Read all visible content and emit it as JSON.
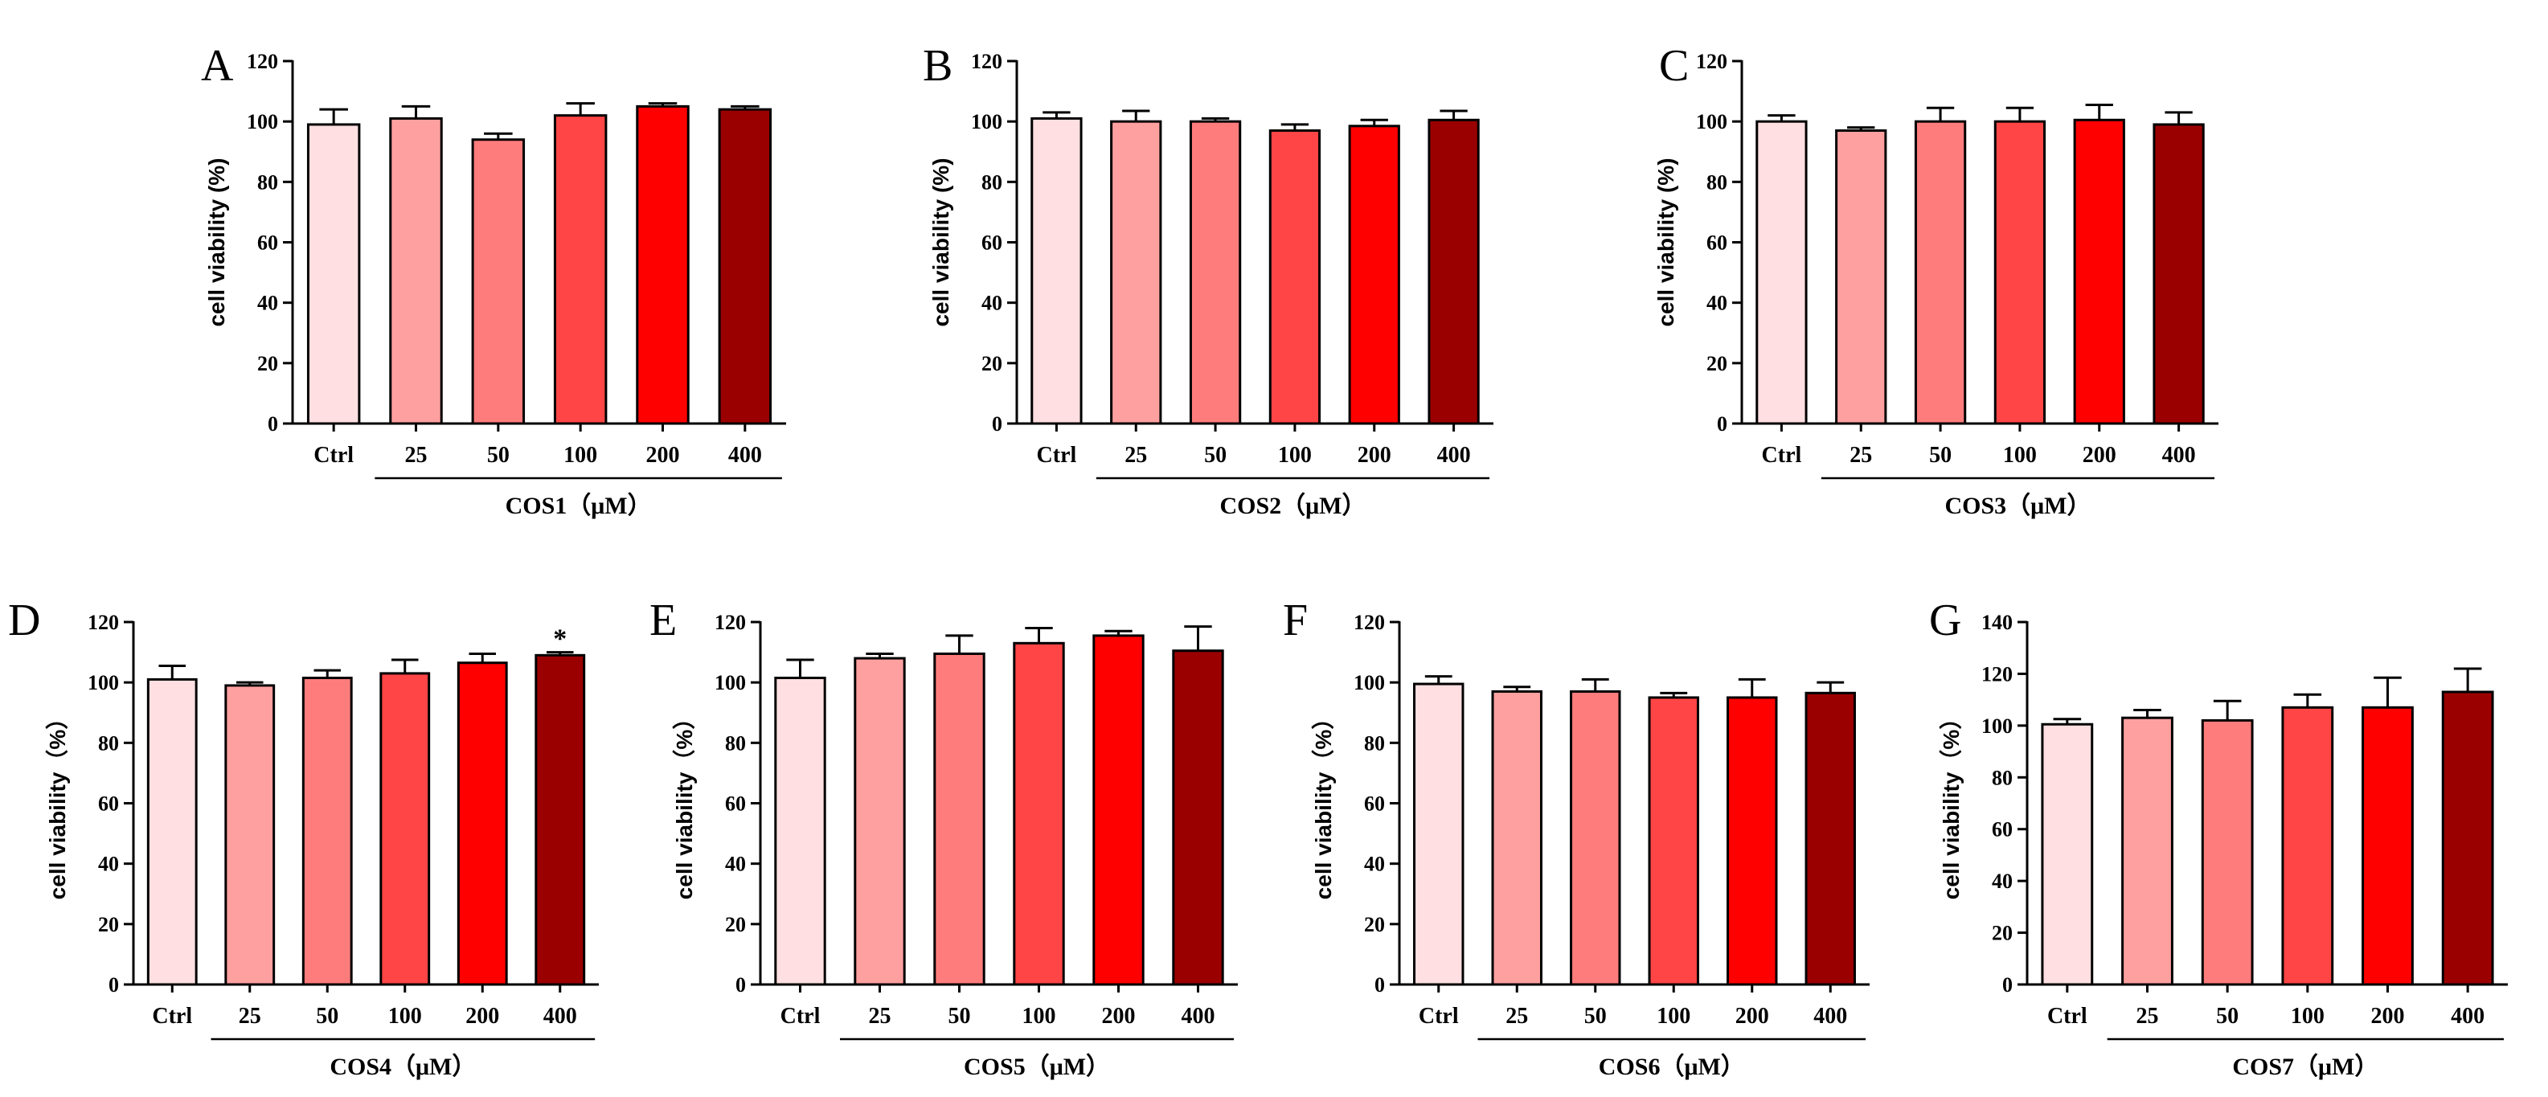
{
  "chart_data": [
    {
      "panel": "A",
      "type": "bar",
      "title": "",
      "xlabel": "COS1（μM）",
      "ylabel": "cell viability (%)",
      "ylim": [
        0,
        120
      ],
      "yticks": [
        0,
        20,
        40,
        60,
        80,
        100,
        120
      ],
      "categories": [
        "Ctrl",
        "25",
        "50",
        "100",
        "200",
        "400"
      ],
      "values": [
        99,
        101,
        94,
        102,
        105,
        104
      ],
      "errors": [
        5,
        4,
        2,
        4,
        1,
        1
      ],
      "colors": [
        "#ffdfe1",
        "#ffa0a0",
        "#ff7c7c",
        "#ff4545",
        "#ff0000",
        "#9b0000"
      ],
      "annotations": [
        "",
        "",
        "",
        "",
        "",
        ""
      ]
    },
    {
      "panel": "B",
      "type": "bar",
      "title": "",
      "xlabel": "COS2（μM）",
      "ylabel": "cell viability (%)",
      "ylim": [
        0,
        120
      ],
      "yticks": [
        0,
        20,
        40,
        60,
        80,
        100,
        120
      ],
      "categories": [
        "Ctrl",
        "25",
        "50",
        "100",
        "200",
        "400"
      ],
      "values": [
        101,
        100,
        100,
        97,
        98.5,
        100.5
      ],
      "errors": [
        2,
        3.5,
        1,
        2,
        2,
        3
      ],
      "colors": [
        "#ffdfe1",
        "#ffa0a0",
        "#ff7c7c",
        "#ff4545",
        "#ff0000",
        "#9b0000"
      ],
      "annotations": [
        "",
        "",
        "",
        "",
        "",
        ""
      ]
    },
    {
      "panel": "C",
      "type": "bar",
      "title": "",
      "xlabel": "COS3（μM）",
      "ylabel": "cell viability (%)",
      "ylim": [
        0,
        120
      ],
      "yticks": [
        0,
        20,
        40,
        60,
        80,
        100,
        120
      ],
      "categories": [
        "Ctrl",
        "25",
        "50",
        "100",
        "200",
        "400"
      ],
      "values": [
        100,
        97,
        100,
        100,
        100.5,
        99
      ],
      "errors": [
        2,
        1,
        4.5,
        4.5,
        5,
        4
      ],
      "colors": [
        "#ffdfe1",
        "#ffa0a0",
        "#ff7c7c",
        "#ff4545",
        "#ff0000",
        "#9b0000"
      ],
      "annotations": [
        "",
        "",
        "",
        "",
        "",
        ""
      ]
    },
    {
      "panel": "D",
      "type": "bar",
      "title": "",
      "xlabel": "COS4（μM）",
      "ylabel": "cell viability（%）",
      "ylim": [
        0,
        120
      ],
      "yticks": [
        0,
        20,
        40,
        60,
        80,
        100,
        120
      ],
      "categories": [
        "Ctrl",
        "25",
        "50",
        "100",
        "200",
        "400"
      ],
      "values": [
        101,
        99,
        101.5,
        103,
        106.5,
        109
      ],
      "errors": [
        4.5,
        1,
        2.5,
        4.5,
        3,
        1
      ],
      "colors": [
        "#ffdfe1",
        "#ffa0a0",
        "#ff7c7c",
        "#ff4545",
        "#ff0000",
        "#9b0000"
      ],
      "annotations": [
        "",
        "",
        "",
        "",
        "",
        "*"
      ]
    },
    {
      "panel": "E",
      "type": "bar",
      "title": "",
      "xlabel": "COS5（μM）",
      "ylabel": "cell viability（%）",
      "ylim": [
        0,
        120
      ],
      "yticks": [
        0,
        20,
        40,
        60,
        80,
        100,
        120
      ],
      "categories": [
        "Ctrl",
        "25",
        "50",
        "100",
        "200",
        "400"
      ],
      "values": [
        101.5,
        108,
        109.5,
        113,
        115.5,
        110.5
      ],
      "errors": [
        6,
        1.5,
        6,
        5,
        1.5,
        8
      ],
      "colors": [
        "#ffdfe1",
        "#ffa0a0",
        "#ff7c7c",
        "#ff4545",
        "#ff0000",
        "#9b0000"
      ],
      "annotations": [
        "",
        "",
        "",
        "",
        "",
        ""
      ]
    },
    {
      "panel": "F",
      "type": "bar",
      "title": "",
      "xlabel": "COS6（μM）",
      "ylabel": "cell viability（%）",
      "ylim": [
        0,
        120
      ],
      "yticks": [
        0,
        20,
        40,
        60,
        80,
        100,
        120
      ],
      "categories": [
        "Ctrl",
        "25",
        "50",
        "100",
        "200",
        "400"
      ],
      "values": [
        99.5,
        97,
        97,
        95,
        95,
        96.5
      ],
      "errors": [
        2.5,
        1.5,
        4,
        1.5,
        6,
        3.5
      ],
      "colors": [
        "#ffdfe1",
        "#ffa0a0",
        "#ff7c7c",
        "#ff4545",
        "#ff0000",
        "#9b0000"
      ],
      "annotations": [
        "",
        "",
        "",
        "",
        "",
        ""
      ]
    },
    {
      "panel": "G",
      "type": "bar",
      "title": "",
      "xlabel": "COS7（μM）",
      "ylabel": "cell viability（%）",
      "ylim": [
        0,
        140
      ],
      "yticks": [
        0,
        20,
        40,
        60,
        80,
        100,
        120,
        140
      ],
      "categories": [
        "Ctrl",
        "25",
        "50",
        "100",
        "200",
        "400"
      ],
      "values": [
        100.5,
        103,
        102,
        107,
        107,
        113
      ],
      "errors": [
        2,
        3,
        7.5,
        5,
        11.5,
        9
      ],
      "colors": [
        "#ffdfe1",
        "#ffa0a0",
        "#ff7c7c",
        "#ff4545",
        "#ff0000",
        "#9b0000"
      ],
      "annotations": [
        "",
        "",
        "",
        "",
        "",
        ""
      ]
    }
  ]
}
